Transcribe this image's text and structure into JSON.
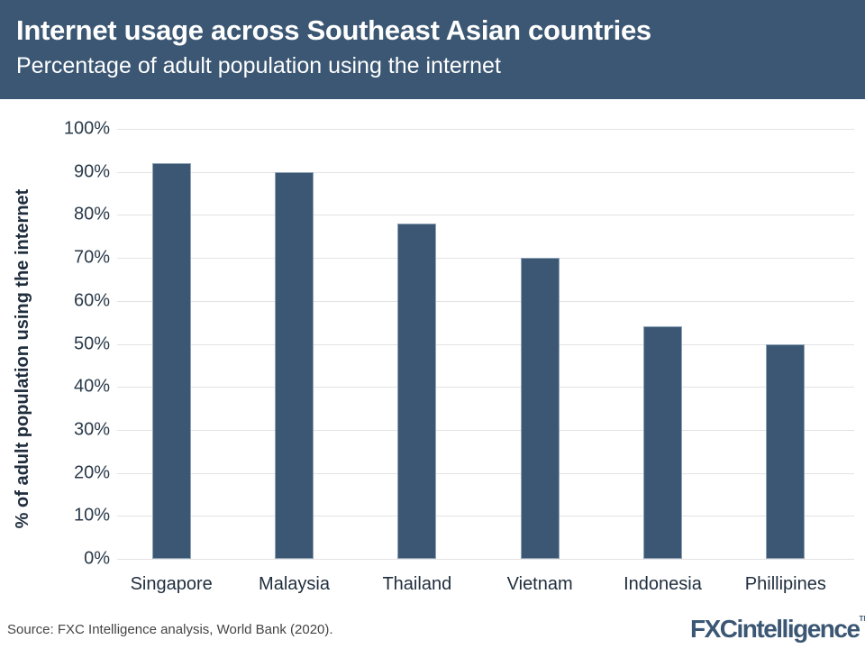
{
  "header": {
    "title": "Internet usage across Southeast Asian countries",
    "subtitle": "Percentage of adult population using the internet"
  },
  "footer": {
    "source": "Source: FXC Intelligence analysis, World Bank (2020).",
    "logo_fx": "FXC",
    "logo_rest": "intelligence",
    "logo_tm": "TM"
  },
  "colors": {
    "header_bg": "#3b5773",
    "bar": "#3b5773",
    "grid": "#e3e3e3"
  },
  "chart_data": {
    "type": "bar",
    "title": "Internet usage across Southeast Asian countries",
    "subtitle": "Percentage of adult population using the internet",
    "xlabel": "",
    "ylabel": "% of adult population using the internet",
    "categories": [
      "Singapore",
      "Malaysia",
      "Thailand",
      "Vietnam",
      "Indonesia",
      "Phillipines"
    ],
    "values": [
      92,
      90,
      78,
      70,
      54,
      50
    ],
    "ylim": [
      0,
      100
    ],
    "yticks": [
      "0%",
      "10%",
      "20%",
      "30%",
      "40%",
      "50%",
      "60%",
      "70%",
      "80%",
      "90%",
      "100%"
    ],
    "grid": true,
    "legend": "none"
  }
}
